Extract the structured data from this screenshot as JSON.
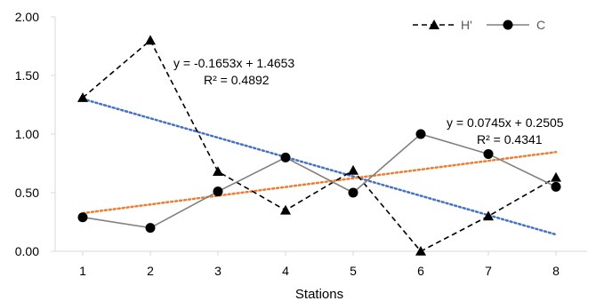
{
  "chart_data": {
    "type": "line",
    "title": "",
    "xlabel": "Stations",
    "ylabel": "",
    "categories": [
      "1",
      "2",
      "3",
      "4",
      "5",
      "6",
      "7",
      "8"
    ],
    "x": [
      1,
      2,
      3,
      4,
      5,
      6,
      7,
      8
    ],
    "ylim": [
      0,
      2
    ],
    "yticks": [
      "0.00",
      "0.50",
      "1.00",
      "1.50",
      "2.00"
    ],
    "ytick_values": [
      0,
      0.5,
      1,
      1.5,
      2
    ],
    "grid": false,
    "legend_position": "top-right",
    "series": [
      {
        "name": "H'",
        "values": [
          1.31,
          1.8,
          0.68,
          0.35,
          0.69,
          0.0,
          0.3,
          0.63
        ],
        "color": "#000000",
        "line_style": "dashed",
        "marker": "triangle"
      },
      {
        "name": "C",
        "values": [
          0.29,
          0.2,
          0.51,
          0.8,
          0.5,
          1.0,
          0.83,
          0.55
        ],
        "color": "#808080",
        "line_style": "solid",
        "marker": "circle"
      }
    ],
    "trendlines": [
      {
        "series": "H'",
        "slope": -0.1653,
        "intercept": 1.4653,
        "color": "#4472C4",
        "style": "dotted",
        "equation": "y = -0.1653x + 1.4653",
        "r2": "R² = 0.4892"
      },
      {
        "series": "C",
        "slope": 0.0745,
        "intercept": 0.2505,
        "color": "#ED7D31",
        "style": "dotted",
        "equation": "y = 0.0745x + 0.2505",
        "r2": "R² = 0.4341"
      }
    ]
  }
}
